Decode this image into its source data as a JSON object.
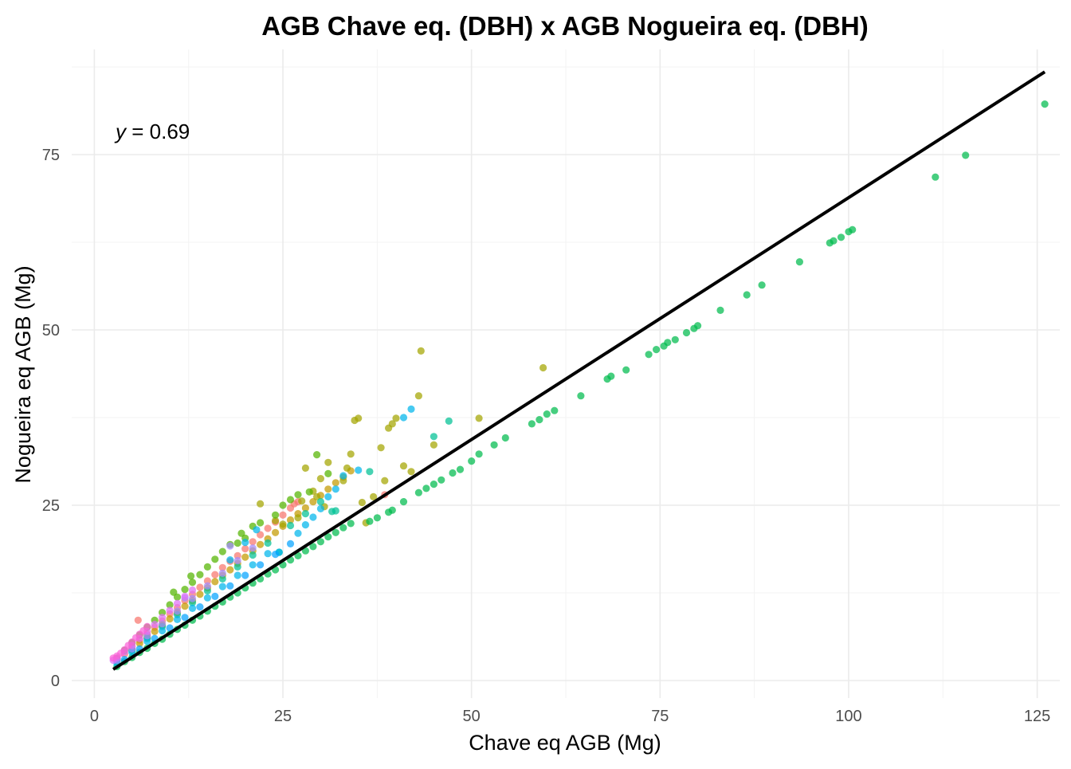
{
  "chart_data": {
    "type": "scatter",
    "title": "AGB Chave eq. (DBH) x AGB Nogueira eq. (DBH)",
    "xlabel": "Chave eq AGB (Mg)",
    "ylabel": "Nogueira eq AGB (Mg)",
    "xlim": [
      -3,
      128
    ],
    "ylim": [
      -2.5,
      90
    ],
    "xticks": [
      0,
      25,
      50,
      75,
      100,
      125
    ],
    "yticks": [
      0,
      25,
      50,
      75
    ],
    "grid": true,
    "legend": "none",
    "annotation": {
      "symbol": "y",
      "text": " = 0.69"
    },
    "fit_line": {
      "x": [
        2.5,
        126
      ],
      "y": [
        1.6,
        86.8
      ],
      "color": "#000000"
    },
    "series": [
      {
        "color": "#F8766D",
        "slope": 0.95,
        "points": [
          [
            3,
            3
          ],
          [
            4,
            3.8
          ],
          [
            5,
            4.8
          ],
          [
            6,
            5.8
          ],
          [
            7,
            6.6
          ],
          [
            8,
            7.6
          ],
          [
            9,
            8.5
          ],
          [
            10,
            9.5
          ],
          [
            11,
            10.4
          ],
          [
            12,
            11.4
          ],
          [
            13,
            12.3
          ],
          [
            14,
            13.3
          ],
          [
            15,
            14.2
          ],
          [
            16,
            15.1
          ],
          [
            17,
            16.1
          ],
          [
            18,
            17.0
          ],
          [
            19,
            17.8
          ],
          [
            20,
            18.8
          ],
          [
            21,
            19.8
          ],
          [
            22,
            20.8
          ],
          [
            23,
            21.7
          ],
          [
            24,
            22.6
          ],
          [
            25,
            23.6
          ],
          [
            26,
            24.6
          ],
          [
            26.5,
            25.2
          ],
          [
            27,
            25.5
          ],
          [
            5.8,
            8.6
          ],
          [
            38.5,
            26.5
          ]
        ]
      },
      {
        "color": "#C49A00",
        "slope": 0.88,
        "points": [
          [
            3,
            3
          ],
          [
            5,
            4.4
          ],
          [
            6,
            5.3
          ],
          [
            7,
            6.2
          ],
          [
            8,
            7.0
          ],
          [
            9,
            7.9
          ],
          [
            10,
            8.8
          ],
          [
            11,
            9.7
          ],
          [
            12,
            10.6
          ],
          [
            13,
            11.4
          ],
          [
            14,
            12.3
          ],
          [
            15,
            13.2
          ],
          [
            16,
            14.1
          ],
          [
            17,
            15.0
          ],
          [
            18,
            15.8
          ],
          [
            19,
            16.7
          ],
          [
            20,
            17.6
          ],
          [
            21,
            18.5
          ],
          [
            22,
            19.4
          ],
          [
            23,
            20.2
          ],
          [
            24,
            21.1
          ],
          [
            25,
            22.0
          ],
          [
            26,
            22.9
          ],
          [
            27,
            23.8
          ],
          [
            28,
            24.6
          ],
          [
            29,
            25.5
          ],
          [
            30,
            26.4
          ],
          [
            31,
            27.3
          ],
          [
            32,
            28.2
          ],
          [
            33,
            29.0
          ],
          [
            34,
            29.9
          ]
        ]
      },
      {
        "color": "#A3A500",
        "slope": 0.97,
        "points": [
          [
            22,
            25.2
          ],
          [
            24,
            22.8
          ],
          [
            25,
            22.3
          ],
          [
            27,
            23.2
          ],
          [
            27.5,
            25.6
          ],
          [
            28,
            30.3
          ],
          [
            29,
            27.0
          ],
          [
            29.5,
            26.2
          ],
          [
            30,
            28.8
          ],
          [
            30.5,
            24.8
          ],
          [
            31,
            31.1
          ],
          [
            33,
            28.5
          ],
          [
            33.5,
            30.3
          ],
          [
            34,
            32.3
          ],
          [
            34.5,
            37.1
          ],
          [
            35,
            37.4
          ],
          [
            35.5,
            25.4
          ],
          [
            36,
            22.5
          ],
          [
            37,
            26.2
          ],
          [
            38,
            33.2
          ],
          [
            39,
            36.0
          ],
          [
            39.5,
            36.6
          ],
          [
            40,
            37.4
          ],
          [
            41,
            30.6
          ],
          [
            42,
            29.8
          ],
          [
            43,
            40.6
          ],
          [
            43.3,
            47.0
          ],
          [
            45,
            33.6
          ],
          [
            51,
            37.4
          ],
          [
            59.5,
            44.6
          ],
          [
            38.5,
            28.5
          ]
        ]
      },
      {
        "color": "#53B400",
        "slope": 1.08,
        "points": [
          [
            3,
            3.2
          ],
          [
            4,
            4.3
          ],
          [
            5,
            5.4
          ],
          [
            6,
            6.5
          ],
          [
            7,
            7.6
          ],
          [
            8,
            8.6
          ],
          [
            9,
            9.7
          ],
          [
            10,
            10.8
          ],
          [
            11,
            11.9
          ],
          [
            12,
            13.0
          ],
          [
            13,
            14.0
          ],
          [
            14,
            15.1
          ],
          [
            15,
            16.2
          ],
          [
            16,
            17.3
          ],
          [
            17,
            18.4
          ],
          [
            18,
            19.4
          ],
          [
            19,
            19.6
          ],
          [
            20,
            20.3
          ],
          [
            22,
            22.5
          ],
          [
            24,
            23.6
          ],
          [
            25,
            25.0
          ],
          [
            26,
            25.8
          ],
          [
            27,
            26.5
          ],
          [
            21,
            22.0
          ],
          [
            12.8,
            14.9
          ],
          [
            10.5,
            12.6
          ],
          [
            19.5,
            21.0
          ],
          [
            29.5,
            32.2
          ],
          [
            28.5,
            26.9
          ],
          [
            31,
            29.5
          ]
        ]
      },
      {
        "color": "#00C094",
        "slope": 0.85,
        "points": [
          [
            3,
            2.8
          ],
          [
            5,
            4.3
          ],
          [
            7,
            6.0
          ],
          [
            9,
            7.7
          ],
          [
            11,
            9.4
          ],
          [
            13,
            11.1
          ],
          [
            15,
            12.8
          ],
          [
            17,
            14.5
          ],
          [
            19,
            16.2
          ],
          [
            21,
            17.9
          ],
          [
            23,
            19.6
          ],
          [
            24.5,
            18.3
          ],
          [
            26,
            22.1
          ],
          [
            28,
            23.8
          ],
          [
            30,
            25.5
          ],
          [
            31.5,
            24.1
          ],
          [
            32,
            24.2
          ],
          [
            45,
            34.8
          ],
          [
            47,
            37.0
          ],
          [
            36.5,
            29.8
          ]
        ]
      },
      {
        "color": "#00BB4E",
        "slope": 0.66,
        "points": [
          [
            3,
            2
          ],
          [
            4,
            2.7
          ],
          [
            5,
            3.3
          ],
          [
            6,
            4
          ],
          [
            7,
            4.6
          ],
          [
            8,
            5.3
          ],
          [
            9,
            5.9
          ],
          [
            10,
            6.6
          ],
          [
            11,
            7.3
          ],
          [
            12,
            7.9
          ],
          [
            13,
            8.6
          ],
          [
            14,
            9.2
          ],
          [
            15,
            9.9
          ],
          [
            16,
            10.6
          ],
          [
            17,
            11.2
          ],
          [
            18,
            11.9
          ],
          [
            19,
            12.5
          ],
          [
            20,
            13.2
          ],
          [
            21,
            13.9
          ],
          [
            22,
            14.5
          ],
          [
            23,
            15.2
          ],
          [
            24,
            15.8
          ],
          [
            25,
            16.5
          ],
          [
            26,
            17.2
          ],
          [
            27,
            17.8
          ],
          [
            28,
            18.5
          ],
          [
            29,
            19.1
          ],
          [
            30,
            19.8
          ],
          [
            31,
            20.5
          ],
          [
            32,
            21.1
          ],
          [
            33,
            21.8
          ],
          [
            34,
            22.4
          ],
          [
            36.5,
            22.7
          ],
          [
            37.5,
            23.2
          ],
          [
            39,
            24.0
          ],
          [
            39.5,
            24.3
          ],
          [
            41,
            25.5
          ],
          [
            43,
            26.8
          ],
          [
            44,
            27.4
          ],
          [
            45,
            28.0
          ],
          [
            46,
            28.6
          ],
          [
            47.5,
            29.6
          ],
          [
            48.5,
            30.1
          ],
          [
            50,
            31.3
          ],
          [
            51,
            32.3
          ],
          [
            53,
            33.6
          ],
          [
            54.5,
            34.6
          ],
          [
            58,
            36.6
          ],
          [
            59,
            37.2
          ],
          [
            60,
            38.0
          ],
          [
            61,
            38.5
          ],
          [
            64.5,
            40.6
          ],
          [
            68,
            43.0
          ],
          [
            68.5,
            43.4
          ],
          [
            70.5,
            44.3
          ],
          [
            73.5,
            46.5
          ],
          [
            74.5,
            47.2
          ],
          [
            75.5,
            47.7
          ],
          [
            76,
            48.2
          ],
          [
            77,
            48.6
          ],
          [
            78.5,
            49.6
          ],
          [
            79.5,
            50.2
          ],
          [
            80,
            50.6
          ],
          [
            83,
            52.8
          ],
          [
            86.5,
            55.0
          ],
          [
            88.5,
            56.4
          ],
          [
            93.5,
            59.7
          ],
          [
            97.5,
            62.4
          ],
          [
            98,
            62.7
          ],
          [
            99,
            63.2
          ],
          [
            100,
            64.0
          ],
          [
            100.5,
            64.3
          ],
          [
            111.5,
            71.8
          ],
          [
            115.5,
            74.9
          ],
          [
            126,
            82.2
          ]
        ]
      },
      {
        "color": "#00B6EB",
        "slope": 0.78,
        "points": [
          [
            3,
            2.4
          ],
          [
            5,
            4
          ],
          [
            7,
            5.6
          ],
          [
            9,
            7.1
          ],
          [
            11,
            8.7
          ],
          [
            13,
            10.3
          ],
          [
            15,
            11.8
          ],
          [
            17,
            13.4
          ],
          [
            19,
            15
          ],
          [
            21,
            16.5
          ],
          [
            23,
            18.1
          ],
          [
            24.5,
            18.3
          ],
          [
            27,
            21.0
          ],
          [
            28,
            22.2
          ],
          [
            29,
            23.3
          ],
          [
            30,
            24.5
          ],
          [
            31,
            26.2
          ],
          [
            32,
            27.3
          ],
          [
            33,
            29.2
          ],
          [
            35,
            30.0
          ],
          [
            41,
            37.5
          ],
          [
            42,
            38.7
          ],
          [
            18,
            17.2
          ],
          [
            20,
            19.7
          ],
          [
            21.5,
            21.5
          ]
        ]
      },
      {
        "color": "#06A4FF",
        "slope": 0.75,
        "points": [
          [
            4,
            3.0
          ],
          [
            6,
            4.5
          ],
          [
            8,
            6.0
          ],
          [
            10,
            7.5
          ],
          [
            12,
            9.0
          ],
          [
            14,
            10.5
          ],
          [
            16,
            12.0
          ],
          [
            18,
            13.5
          ],
          [
            20,
            15.0
          ],
          [
            22,
            16.5
          ],
          [
            24,
            18.0
          ],
          [
            26,
            19.5
          ]
        ]
      },
      {
        "color": "#A58AFF",
        "slope": 0.9,
        "points": [
          [
            3,
            2.9
          ],
          [
            5,
            4.5
          ],
          [
            7,
            6.4
          ],
          [
            9,
            8.1
          ],
          [
            11,
            9.9
          ],
          [
            13,
            11.7
          ],
          [
            15,
            13.5
          ],
          [
            17,
            15.3
          ],
          [
            19,
            17.1
          ],
          [
            21,
            18.9
          ],
          [
            18,
            19.2
          ],
          [
            12,
            11.8
          ]
        ]
      },
      {
        "color": "#DF70F8",
        "slope": 1.0,
        "points": [
          [
            2.5,
            2.9
          ],
          [
            3,
            3.2
          ],
          [
            4,
            4.1
          ],
          [
            5,
            5
          ],
          [
            6,
            6
          ],
          [
            7,
            7
          ],
          [
            8,
            8
          ],
          [
            9,
            9
          ],
          [
            10,
            10.0
          ],
          [
            11,
            11
          ],
          [
            12,
            12
          ],
          [
            13,
            12.9
          ]
        ]
      },
      {
        "color": "#FB61D7",
        "slope": 1.1,
        "points": [
          [
            2.5,
            3.2
          ],
          [
            3,
            3.5
          ],
          [
            3.5,
            3.9
          ],
          [
            4,
            4.4
          ],
          [
            4.5,
            5
          ],
          [
            5,
            5.5
          ],
          [
            5.5,
            6.1
          ],
          [
            6,
            6.6
          ],
          [
            6.5,
            7.1
          ],
          [
            7,
            7.7
          ]
        ]
      }
    ]
  }
}
